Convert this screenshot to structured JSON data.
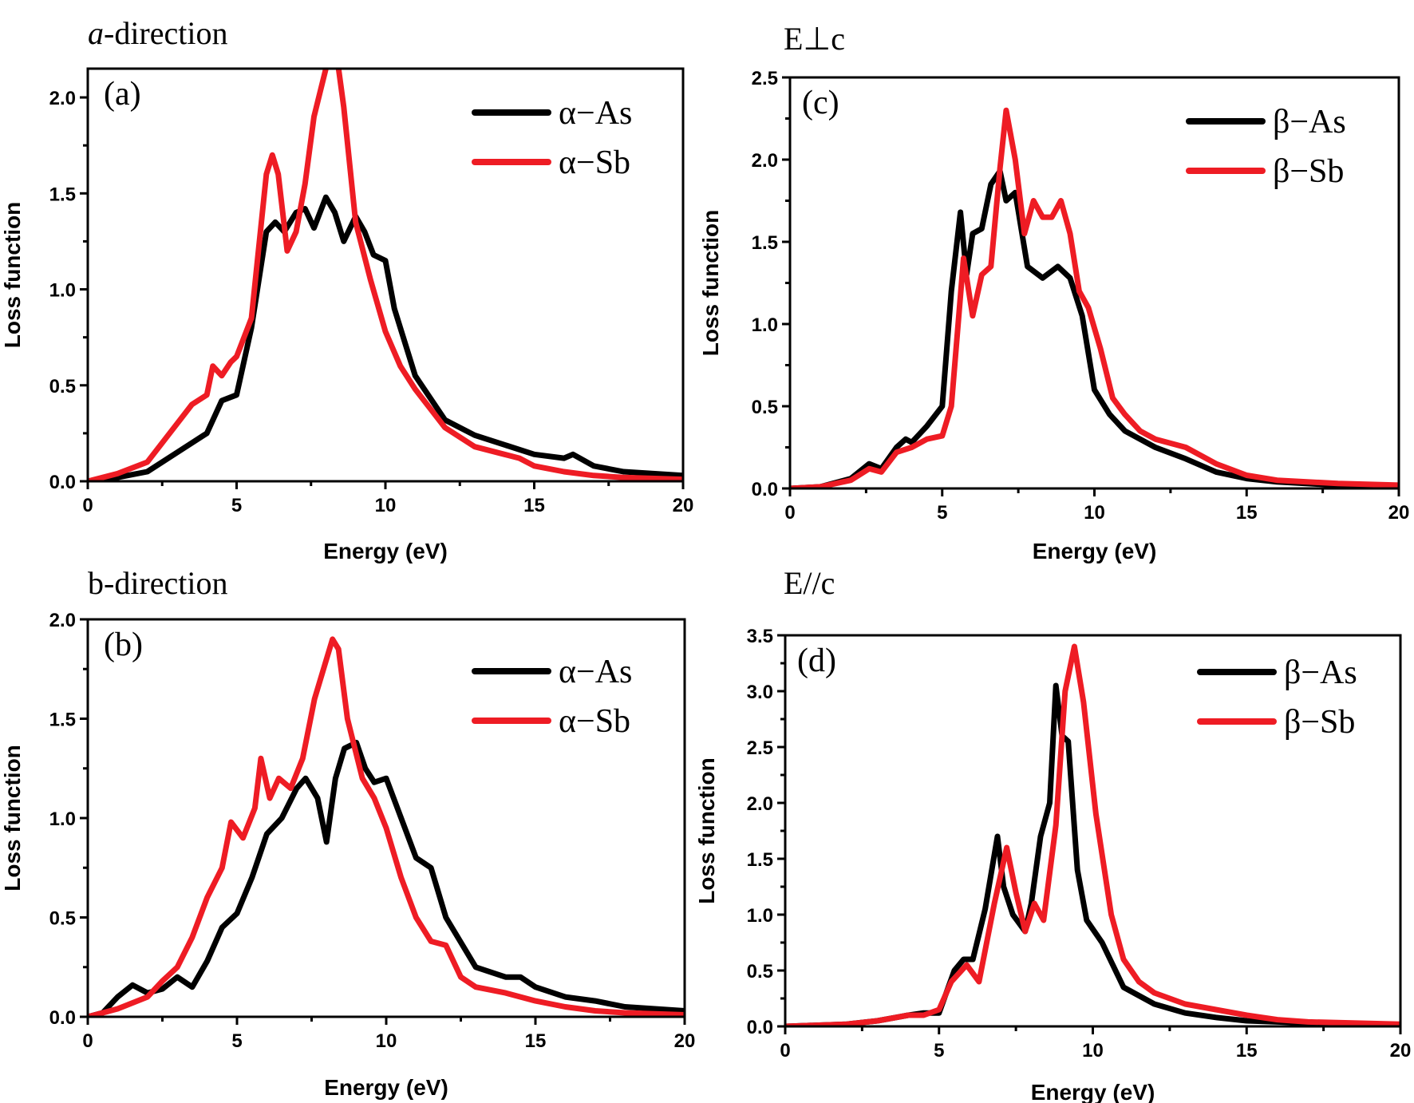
{
  "chart_data": [
    {
      "type": "line",
      "panel": "(a)",
      "title": "a-direction",
      "title_italic_prefix": "a",
      "title_suffix": "-direction",
      "xlabel": "Energy (eV)",
      "ylabel": "Loss function",
      "xlim": [
        0,
        20
      ],
      "ylim": [
        0,
        2.15
      ],
      "xticks": [
        0,
        5,
        10,
        15,
        20
      ],
      "yticks": [
        0.0,
        0.5,
        1.0,
        1.5,
        2.0
      ],
      "ytick_labels": [
        "0.0",
        "0.5",
        "1.0",
        "1.5",
        "2.0"
      ],
      "legend_position": "top-right",
      "series": [
        {
          "name": "α−As",
          "color": "#000000",
          "x": [
            0,
            1,
            2,
            3,
            3.5,
            4,
            4.5,
            5,
            5.5,
            6,
            6.3,
            6.6,
            7,
            7.3,
            7.6,
            8,
            8.3,
            8.6,
            9,
            9.3,
            9.6,
            10,
            10.3,
            11,
            12,
            13,
            14,
            15,
            16,
            16.3,
            17,
            18,
            20
          ],
          "y": [
            0,
            0.02,
            0.05,
            0.15,
            0.2,
            0.25,
            0.42,
            0.45,
            0.8,
            1.3,
            1.35,
            1.3,
            1.4,
            1.42,
            1.32,
            1.48,
            1.4,
            1.25,
            1.38,
            1.3,
            1.18,
            1.15,
            0.9,
            0.55,
            0.32,
            0.24,
            0.19,
            0.14,
            0.12,
            0.14,
            0.08,
            0.05,
            0.03
          ]
        },
        {
          "name": "α−Sb",
          "color": "#ee1c24",
          "x": [
            0,
            1,
            2,
            3,
            3.5,
            4,
            4.2,
            4.5,
            4.8,
            5,
            5.5,
            6,
            6.2,
            6.4,
            6.7,
            7,
            7.3,
            7.6,
            8,
            8.2,
            8.4,
            8.6,
            9,
            9.5,
            10,
            10.5,
            11,
            12,
            13,
            14,
            14.5,
            15,
            16,
            17,
            18,
            20
          ],
          "y": [
            0,
            0.04,
            0.1,
            0.3,
            0.4,
            0.45,
            0.6,
            0.55,
            0.62,
            0.65,
            0.85,
            1.6,
            1.7,
            1.6,
            1.2,
            1.3,
            1.55,
            1.9,
            2.15,
            2.2,
            2.18,
            1.95,
            1.35,
            1.05,
            0.78,
            0.6,
            0.48,
            0.28,
            0.18,
            0.14,
            0.12,
            0.08,
            0.05,
            0.03,
            0.02,
            0.01
          ]
        }
      ]
    },
    {
      "type": "line",
      "panel": "(b)",
      "title": "b-direction",
      "xlabel": "Energy (eV)",
      "ylabel": "Loss function",
      "xlim": [
        0,
        20
      ],
      "ylim": [
        0,
        2.0
      ],
      "xticks": [
        0,
        5,
        10,
        15,
        20
      ],
      "yticks": [
        0.0,
        0.5,
        1.0,
        1.5,
        2.0
      ],
      "ytick_labels": [
        "0.0",
        "0.5",
        "1.0",
        "1.5",
        "2.0"
      ],
      "legend_position": "top-right",
      "series": [
        {
          "name": "α−As",
          "color": "#000000",
          "x": [
            0,
            0.5,
            1,
            1.5,
            2,
            2.5,
            3,
            3.5,
            4,
            4.5,
            5,
            5.5,
            6,
            6.5,
            7,
            7.3,
            7.7,
            8,
            8.3,
            8.6,
            9,
            9.3,
            9.6,
            10,
            10.5,
            11,
            11.5,
            12,
            13,
            14,
            14.5,
            15,
            16,
            17,
            18,
            20
          ],
          "y": [
            0,
            0.02,
            0.1,
            0.16,
            0.12,
            0.14,
            0.2,
            0.15,
            0.28,
            0.45,
            0.52,
            0.7,
            0.92,
            1.0,
            1.15,
            1.2,
            1.1,
            0.88,
            1.2,
            1.35,
            1.38,
            1.25,
            1.18,
            1.2,
            1.0,
            0.8,
            0.75,
            0.5,
            0.25,
            0.2,
            0.2,
            0.15,
            0.1,
            0.08,
            0.05,
            0.03
          ]
        },
        {
          "name": "α−Sb",
          "color": "#ee1c24",
          "x": [
            0,
            1,
            2,
            2.5,
            3,
            3.5,
            4,
            4.5,
            4.8,
            5.2,
            5.6,
            5.8,
            6.1,
            6.4,
            6.8,
            7.2,
            7.6,
            8,
            8.2,
            8.4,
            8.7,
            9.2,
            9.6,
            10,
            10.5,
            11,
            11.5,
            12,
            12.5,
            13,
            14,
            15,
            16,
            17,
            18,
            20
          ],
          "y": [
            0,
            0.04,
            0.1,
            0.18,
            0.25,
            0.4,
            0.6,
            0.75,
            0.98,
            0.9,
            1.05,
            1.3,
            1.1,
            1.2,
            1.15,
            1.3,
            1.6,
            1.8,
            1.9,
            1.85,
            1.5,
            1.2,
            1.1,
            0.95,
            0.7,
            0.5,
            0.38,
            0.36,
            0.2,
            0.15,
            0.12,
            0.08,
            0.05,
            0.03,
            0.02,
            0.01
          ]
        }
      ]
    },
    {
      "type": "line",
      "panel": "(c)",
      "title": "E⊥c",
      "xlabel": "Energy (eV)",
      "ylabel": "Loss function",
      "xlim": [
        0,
        20
      ],
      "ylim": [
        0,
        2.5
      ],
      "xticks": [
        0,
        5,
        10,
        15,
        20
      ],
      "yticks": [
        0.0,
        0.5,
        1.0,
        1.5,
        2.0,
        2.5
      ],
      "ytick_labels": [
        "0.0",
        "0.5",
        "1.0",
        "1.5",
        "2.0",
        "2.5"
      ],
      "legend_position": "top-right",
      "series": [
        {
          "name": "β−As",
          "color": "#000000",
          "x": [
            0,
            1,
            2,
            2.6,
            3,
            3.5,
            3.8,
            4,
            4.5,
            5,
            5.3,
            5.6,
            5.8,
            6,
            6.3,
            6.6,
            6.9,
            7.1,
            7.4,
            7.8,
            8.3,
            8.8,
            9.2,
            9.6,
            10,
            10.5,
            11,
            12,
            13,
            14,
            15,
            16,
            18,
            20
          ],
          "y": [
            0,
            0.01,
            0.06,
            0.15,
            0.12,
            0.25,
            0.3,
            0.28,
            0.38,
            0.5,
            1.2,
            1.68,
            1.3,
            1.55,
            1.58,
            1.85,
            1.93,
            1.75,
            1.8,
            1.35,
            1.28,
            1.35,
            1.28,
            1.05,
            0.6,
            0.45,
            0.35,
            0.25,
            0.18,
            0.1,
            0.06,
            0.04,
            0.02,
            0.01
          ]
        },
        {
          "name": "β−Sb",
          "color": "#ee1c24",
          "x": [
            0,
            1,
            2,
            2.6,
            3,
            3.5,
            4,
            4.5,
            5,
            5.3,
            5.7,
            6,
            6.3,
            6.6,
            6.9,
            7.1,
            7.4,
            7.7,
            8,
            8.3,
            8.6,
            8.9,
            9.2,
            9.5,
            9.8,
            10.2,
            10.6,
            11,
            11.5,
            12,
            13,
            14,
            15,
            16,
            18,
            20
          ],
          "y": [
            0,
            0.01,
            0.05,
            0.12,
            0.1,
            0.22,
            0.25,
            0.3,
            0.32,
            0.5,
            1.4,
            1.05,
            1.3,
            1.35,
            1.95,
            2.3,
            2.0,
            1.55,
            1.75,
            1.65,
            1.65,
            1.75,
            1.55,
            1.2,
            1.1,
            0.85,
            0.55,
            0.45,
            0.35,
            0.3,
            0.25,
            0.15,
            0.08,
            0.05,
            0.03,
            0.02
          ]
        }
      ]
    },
    {
      "type": "line",
      "panel": "(d)",
      "title": "E//c",
      "xlabel": "Energy (eV)",
      "ylabel": "Loss function",
      "xlim": [
        0,
        20
      ],
      "ylim": [
        0,
        3.5
      ],
      "xticks": [
        0,
        5,
        10,
        15,
        20
      ],
      "yticks": [
        0.0,
        0.5,
        1.0,
        1.5,
        2.0,
        2.5,
        3.0,
        3.5
      ],
      "ytick_labels": [
        "0.0",
        "0.5",
        "1.0",
        "1.5",
        "2.0",
        "2.5",
        "3.0",
        "3.5"
      ],
      "legend_position": "top-right",
      "series": [
        {
          "name": "β−As",
          "color": "#000000",
          "x": [
            0,
            2,
            3,
            4,
            4.5,
            5,
            5.5,
            5.8,
            6.1,
            6.5,
            6.9,
            7.1,
            7.4,
            7.8,
            8,
            8.3,
            8.6,
            8.8,
            9.0,
            9.2,
            9.5,
            9.8,
            10.3,
            11,
            12,
            13,
            14,
            15,
            17,
            20
          ],
          "y": [
            0,
            0.02,
            0.05,
            0.1,
            0.12,
            0.12,
            0.5,
            0.6,
            0.6,
            1.05,
            1.7,
            1.25,
            1.0,
            0.85,
            1.1,
            1.7,
            2.0,
            3.05,
            2.6,
            2.55,
            1.4,
            0.95,
            0.75,
            0.35,
            0.2,
            0.12,
            0.08,
            0.05,
            0.03,
            0.01
          ]
        },
        {
          "name": "β−Sb",
          "color": "#ee1c24",
          "x": [
            0,
            2,
            3,
            4,
            4.5,
            5,
            5.4,
            5.9,
            6.3,
            6.8,
            7.2,
            7.5,
            7.8,
            8.1,
            8.4,
            8.8,
            9.1,
            9.4,
            9.7,
            10.1,
            10.6,
            11,
            11.5,
            12,
            13,
            14,
            15,
            16,
            17,
            20
          ],
          "y": [
            0,
            0.02,
            0.05,
            0.1,
            0.1,
            0.15,
            0.4,
            0.55,
            0.4,
            1.1,
            1.6,
            1.2,
            0.85,
            1.1,
            0.95,
            1.8,
            3.0,
            3.4,
            2.9,
            1.9,
            1.0,
            0.6,
            0.4,
            0.3,
            0.2,
            0.15,
            0.1,
            0.06,
            0.04,
            0.02
          ]
        }
      ]
    }
  ]
}
